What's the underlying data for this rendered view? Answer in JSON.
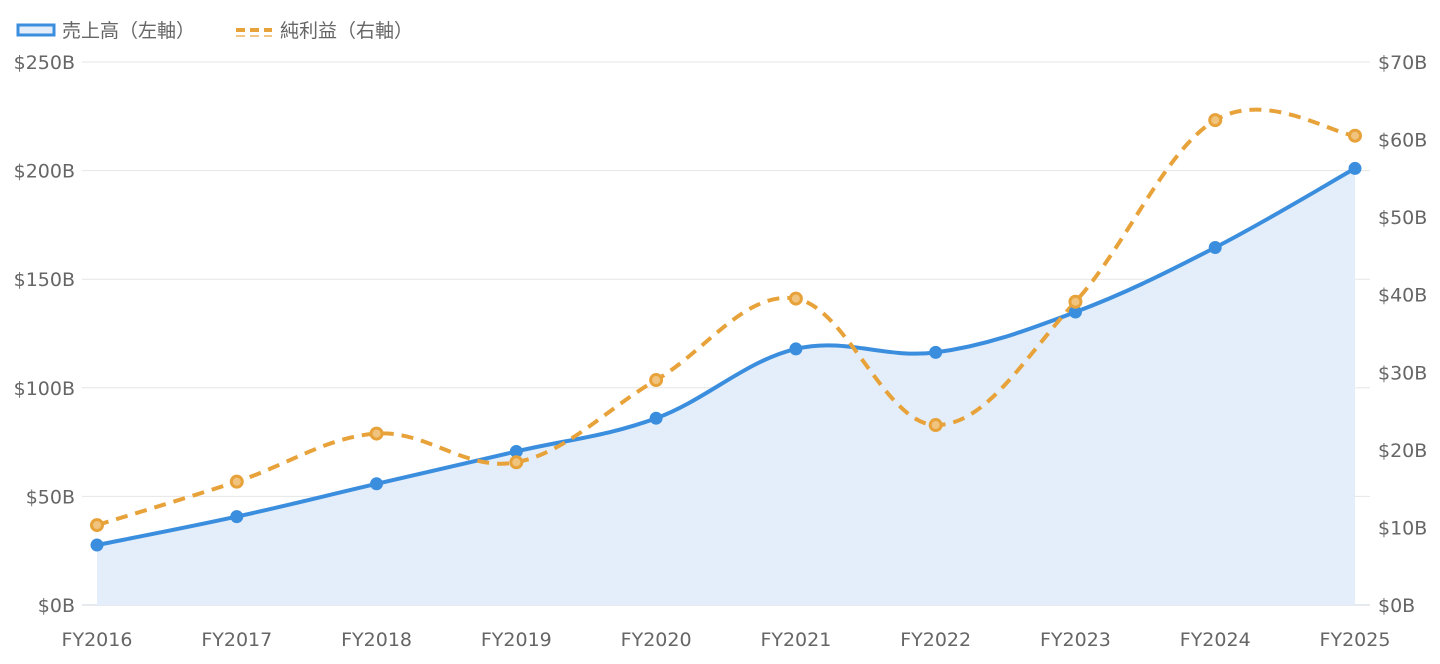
{
  "chart_data": {
    "type": "line",
    "categories": [
      "FY2016",
      "FY2017",
      "FY2018",
      "FY2019",
      "FY2020",
      "FY2021",
      "FY2022",
      "FY2023",
      "FY2024",
      "FY2025"
    ],
    "series": [
      {
        "name": "売上高（左軸）",
        "axis": "left",
        "values": [
          27.6,
          40.7,
          55.8,
          70.7,
          86.0,
          117.9,
          116.3,
          134.9,
          164.6,
          201.0
        ],
        "color": "#3b8ede",
        "fill": "#e3eefa",
        "line_style": "solid"
      },
      {
        "name": "純利益（右軸）",
        "axis": "right",
        "values": [
          10.3,
          15.9,
          22.1,
          18.4,
          29.0,
          39.5,
          23.2,
          39.1,
          62.5,
          60.5
        ],
        "color": "#e8a23a",
        "line_style": "dashed"
      }
    ],
    "y_left": {
      "min": 0,
      "max": 250,
      "ticks": [
        0,
        50,
        100,
        150,
        200,
        250
      ],
      "tick_labels": [
        "$0B",
        "$50B",
        "$100B",
        "$150B",
        "$200B",
        "$250B"
      ]
    },
    "y_right": {
      "min": 0,
      "max": 70,
      "ticks": [
        0,
        10,
        20,
        30,
        40,
        50,
        60,
        70
      ],
      "tick_labels": [
        "$0B",
        "$10B",
        "$20B",
        "$30B",
        "$40B",
        "$50B",
        "$60B",
        "$70B"
      ]
    },
    "grid": true,
    "legend_position": "top-left"
  }
}
